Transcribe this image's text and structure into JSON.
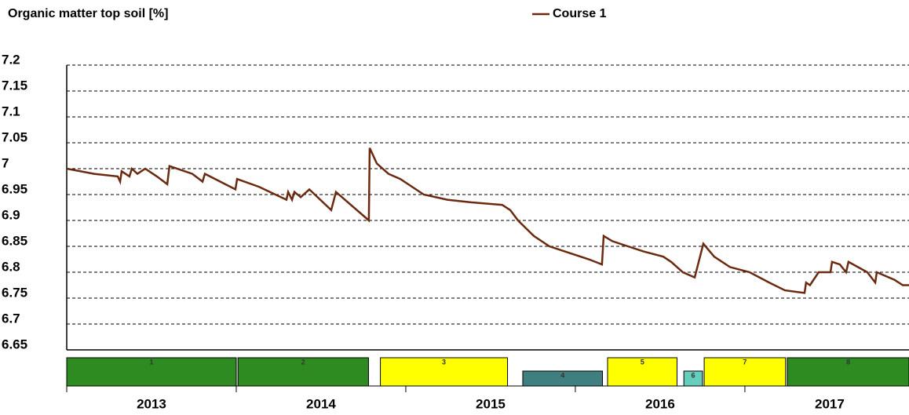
{
  "chart_data": {
    "type": "line",
    "title": "Organic matter top soil [%]",
    "xlim": [
      2013,
      2017.968
    ],
    "ylim": [
      6.65,
      7.2
    ],
    "yticks": [
      6.65,
      6.7,
      6.75,
      6.8,
      6.85,
      6.9,
      6.95,
      7,
      7.05,
      7.1,
      7.15,
      7.2
    ],
    "xticks": [
      {
        "value": 2013,
        "label": "2013"
      },
      {
        "value": 2014,
        "label": "2014"
      },
      {
        "value": 2015,
        "label": "2015"
      },
      {
        "value": 2016,
        "label": "2016"
      },
      {
        "value": 2017,
        "label": "2017"
      }
    ],
    "grid": true,
    "legend": "top",
    "x": [
      2013.0,
      2013.162,
      2013.301,
      2013.315,
      2013.324,
      2013.37,
      2013.384,
      2013.417,
      2013.463,
      2013.532,
      2013.593,
      2013.606,
      2013.741,
      2013.801,
      2013.815,
      2013.995,
      2014.005,
      2014.134,
      2014.296,
      2014.306,
      2014.329,
      2014.343,
      2014.38,
      2014.431,
      2014.56,
      2014.588,
      2014.782,
      2014.787,
      2014.829,
      2014.898,
      2014.968,
      2015.106,
      2015.245,
      2015.384,
      2015.569,
      2015.616,
      2015.662,
      2015.755,
      2015.847,
      2015.986,
      2016.079,
      2016.157,
      2016.167,
      2016.218,
      2016.31,
      2016.403,
      2016.519,
      2016.565,
      2016.634,
      2016.704,
      2016.755,
      2016.819,
      2016.912,
      2017.028,
      2017.144,
      2017.236,
      2017.352,
      2017.361,
      2017.384,
      2017.435,
      2017.505,
      2017.514,
      2017.56,
      2017.597,
      2017.611,
      2017.722,
      2017.769,
      2017.778,
      2017.884,
      2017.931,
      2017.968
    ],
    "series": [
      {
        "name": "Course 1",
        "color": "#6b2a10",
        "values": [
          7.0,
          6.99,
          6.985,
          6.975,
          6.995,
          6.985,
          7.0,
          6.99,
          7.0,
          6.985,
          6.97,
          7.005,
          6.99,
          6.975,
          6.99,
          6.96,
          6.98,
          6.965,
          6.94,
          6.955,
          6.94,
          6.955,
          6.945,
          6.96,
          6.92,
          6.955,
          6.9,
          7.04,
          7.01,
          6.99,
          6.98,
          6.95,
          6.94,
          6.935,
          6.93,
          6.92,
          6.9,
          6.87,
          6.85,
          6.835,
          6.825,
          6.815,
          6.87,
          6.86,
          6.85,
          6.84,
          6.83,
          6.82,
          6.8,
          6.79,
          6.855,
          6.83,
          6.81,
          6.8,
          6.78,
          6.765,
          6.76,
          6.78,
          6.775,
          6.8,
          6.8,
          6.82,
          6.815,
          6.8,
          6.82,
          6.8,
          6.78,
          6.8,
          6.785,
          6.775,
          6.775
        ]
      }
    ],
    "crops": [
      {
        "label": "1",
        "start": 2013.0,
        "end": 2014.0,
        "color": "#2e8b22"
      },
      {
        "label": "2",
        "start": 2014.01,
        "end": 2014.78,
        "color": "#2e8b22"
      },
      {
        "label": "3",
        "start": 2014.85,
        "end": 2015.6,
        "color": "#ffff00"
      },
      {
        "label": "4",
        "start": 2015.69,
        "end": 2016.16,
        "color": "#3f7f7f"
      },
      {
        "label": "5",
        "start": 2016.19,
        "end": 2016.6,
        "color": "#ffff00"
      },
      {
        "label": "6",
        "start": 2016.64,
        "end": 2016.75,
        "color": "#66ccbb"
      },
      {
        "label": "7",
        "start": 2016.76,
        "end": 2017.24,
        "color": "#ffff00"
      },
      {
        "label": "8",
        "start": 2017.25,
        "end": 2017.968,
        "color": "#2e8b22"
      }
    ]
  }
}
